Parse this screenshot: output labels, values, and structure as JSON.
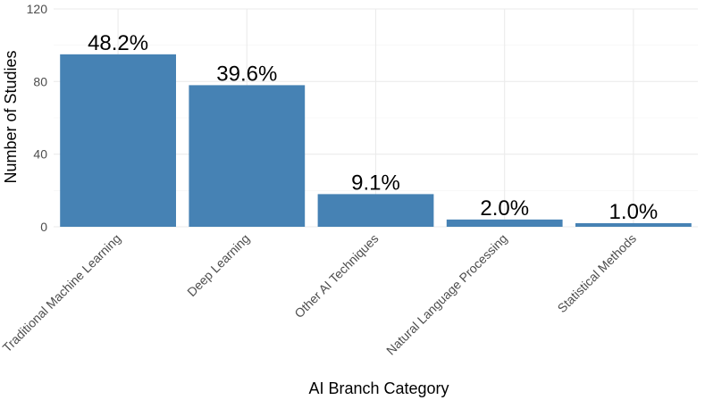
{
  "chart_data": {
    "type": "bar",
    "title": "",
    "xlabel": "AI Branch Category",
    "ylabel": "Number of Studies",
    "categories": [
      "Traditional Machine Learning",
      "Deep Learning",
      "Other AI Techniques",
      "Natural Language Processing",
      "Statistical Methods"
    ],
    "values": [
      95,
      78,
      18,
      4,
      2
    ],
    "labels": [
      "48.2%",
      "39.6%",
      "9.1%",
      "2.0%",
      "1.0%"
    ],
    "ylim": [
      0,
      120
    ],
    "yticks": [
      0,
      40,
      80,
      120
    ],
    "yticks_labels": [
      "0",
      "40",
      "80",
      "120"
    ],
    "grid": true,
    "bar_color": "#4682B4"
  }
}
